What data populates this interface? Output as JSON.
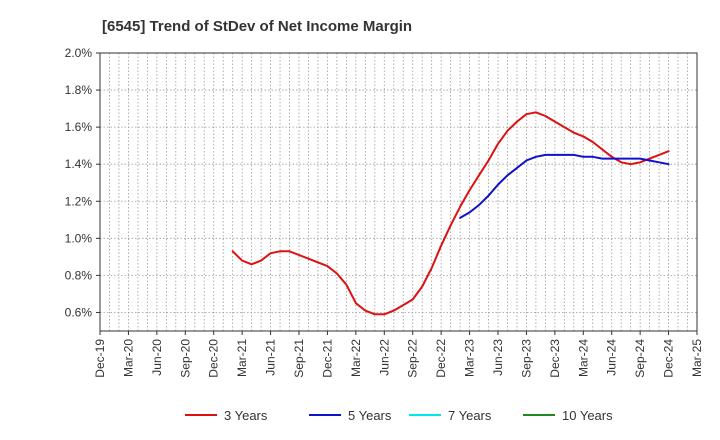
{
  "title": "[6545]  Trend of StDev of Net Income Margin",
  "chart_data": {
    "type": "line",
    "title": "[6545]  Trend of StDev of Net Income Margin",
    "xlabel": "",
    "ylabel": "",
    "x_ticks": [
      "Dec-19",
      "Mar-20",
      "Jun-20",
      "Sep-20",
      "Dec-20",
      "Mar-21",
      "Jun-21",
      "Sep-21",
      "Dec-21",
      "Mar-22",
      "Jun-22",
      "Sep-22",
      "Dec-22",
      "Mar-23",
      "Jun-23",
      "Sep-23",
      "Dec-23",
      "Mar-24",
      "Jun-24",
      "Sep-24",
      "Dec-24",
      "Mar-25"
    ],
    "y_ticks": [
      "0.6%",
      "0.8%",
      "1.0%",
      "1.2%",
      "1.4%",
      "1.6%",
      "1.8%",
      "2.0%"
    ],
    "y_tick_values": [
      0.6,
      0.8,
      1.0,
      1.2,
      1.4,
      1.6,
      1.8,
      2.0
    ],
    "ylim": [
      0.5,
      2.0
    ],
    "grid": true,
    "legend_position": "bottom",
    "series": [
      {
        "name": "3 Years",
        "color": "#dd1111",
        "x": [
          "Feb-21",
          "Mar-21",
          "Apr-21",
          "May-21",
          "Jun-21",
          "Jul-21",
          "Aug-21",
          "Sep-21",
          "Oct-21",
          "Nov-21",
          "Dec-21",
          "Jan-22",
          "Feb-22",
          "Mar-22",
          "Apr-22",
          "May-22",
          "Jun-22",
          "Jul-22",
          "Aug-22",
          "Sep-22",
          "Oct-22",
          "Nov-22",
          "Dec-22",
          "Jan-23",
          "Feb-23",
          "Mar-23",
          "Apr-23",
          "May-23",
          "Jun-23",
          "Jul-23",
          "Aug-23",
          "Sep-23",
          "Oct-23",
          "Nov-23",
          "Dec-23",
          "Jan-24",
          "Feb-24",
          "Mar-24",
          "Apr-24",
          "May-24",
          "Jun-24",
          "Jul-24",
          "Aug-24",
          "Sep-24",
          "Oct-24",
          "Nov-24",
          "Dec-24"
        ],
        "values": [
          0.93,
          0.88,
          0.86,
          0.88,
          0.92,
          0.93,
          0.93,
          0.91,
          0.89,
          0.87,
          0.85,
          0.81,
          0.75,
          0.65,
          0.61,
          0.59,
          0.59,
          0.61,
          0.64,
          0.67,
          0.74,
          0.84,
          0.96,
          1.07,
          1.17,
          1.26,
          1.34,
          1.42,
          1.51,
          1.58,
          1.63,
          1.67,
          1.68,
          1.66,
          1.63,
          1.6,
          1.57,
          1.55,
          1.52,
          1.48,
          1.44,
          1.41,
          1.4,
          1.41,
          1.43,
          1.45,
          1.47
        ]
      },
      {
        "name": "5 Years",
        "color": "#1111cc",
        "x": [
          "Feb-23",
          "Mar-23",
          "Apr-23",
          "May-23",
          "Jun-23",
          "Jul-23",
          "Aug-23",
          "Sep-23",
          "Oct-23",
          "Nov-23",
          "Dec-23",
          "Jan-24",
          "Feb-24",
          "Mar-24",
          "Apr-24",
          "May-24",
          "Jun-24",
          "Jul-24",
          "Aug-24",
          "Sep-24",
          "Oct-24",
          "Nov-24",
          "Dec-24"
        ],
        "values": [
          1.11,
          1.14,
          1.18,
          1.23,
          1.29,
          1.34,
          1.38,
          1.42,
          1.44,
          1.45,
          1.45,
          1.45,
          1.45,
          1.44,
          1.44,
          1.43,
          1.43,
          1.43,
          1.43,
          1.43,
          1.42,
          1.41,
          1.4
        ]
      },
      {
        "name": "7 Years",
        "color": "#00e5ee",
        "x": [],
        "values": []
      },
      {
        "name": "10 Years",
        "color": "#228822",
        "x": [],
        "values": []
      }
    ]
  }
}
